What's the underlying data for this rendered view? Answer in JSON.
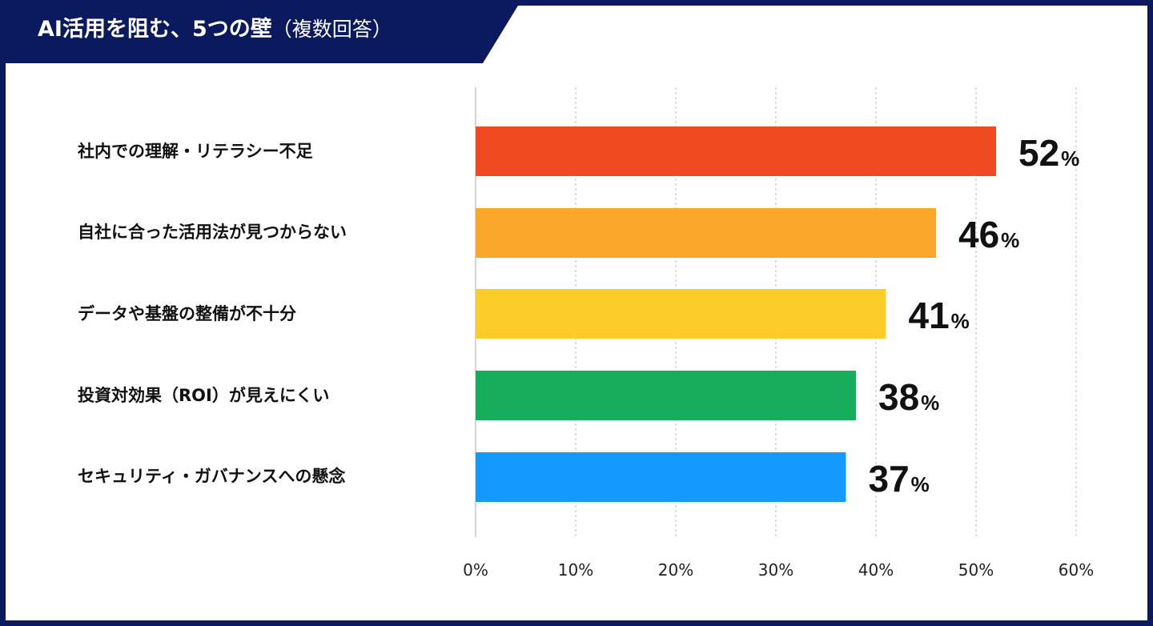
{
  "title": {
    "main": "AI活用を阻む、5つの壁",
    "sub": "（複数回答）"
  },
  "chart_data": {
    "type": "bar",
    "orientation": "horizontal",
    "title": "AI活用を阻む、5つの壁（複数回答）",
    "categories": [
      "社内での理解・リテラシー不足",
      "自社に合った活用法が見つからない",
      "データや基盤の整備が不十分",
      "投資対効果（ROI）が見えにくい",
      "セキュリティ・ガバナンスへの懸念"
    ],
    "values": [
      52,
      46,
      41,
      38,
      37
    ],
    "value_suffix": "%",
    "bar_colors": [
      "#f04a23",
      "#fba72a",
      "#fccc2a",
      "#16ae5c",
      "#1499ff"
    ],
    "xlim": [
      0,
      60
    ],
    "xticks": [
      "0%",
      "10%",
      "20%",
      "30%",
      "40%",
      "50%",
      "60%"
    ],
    "xtick_values": [
      0,
      10,
      20,
      30,
      40,
      50,
      60
    ],
    "grid": "vertical dashed",
    "xlabel": "",
    "ylabel": ""
  },
  "colors": {
    "frame": "#0b1a5e",
    "background": "#ffffff",
    "grid": "#bfbfbf",
    "text": "#111111"
  }
}
